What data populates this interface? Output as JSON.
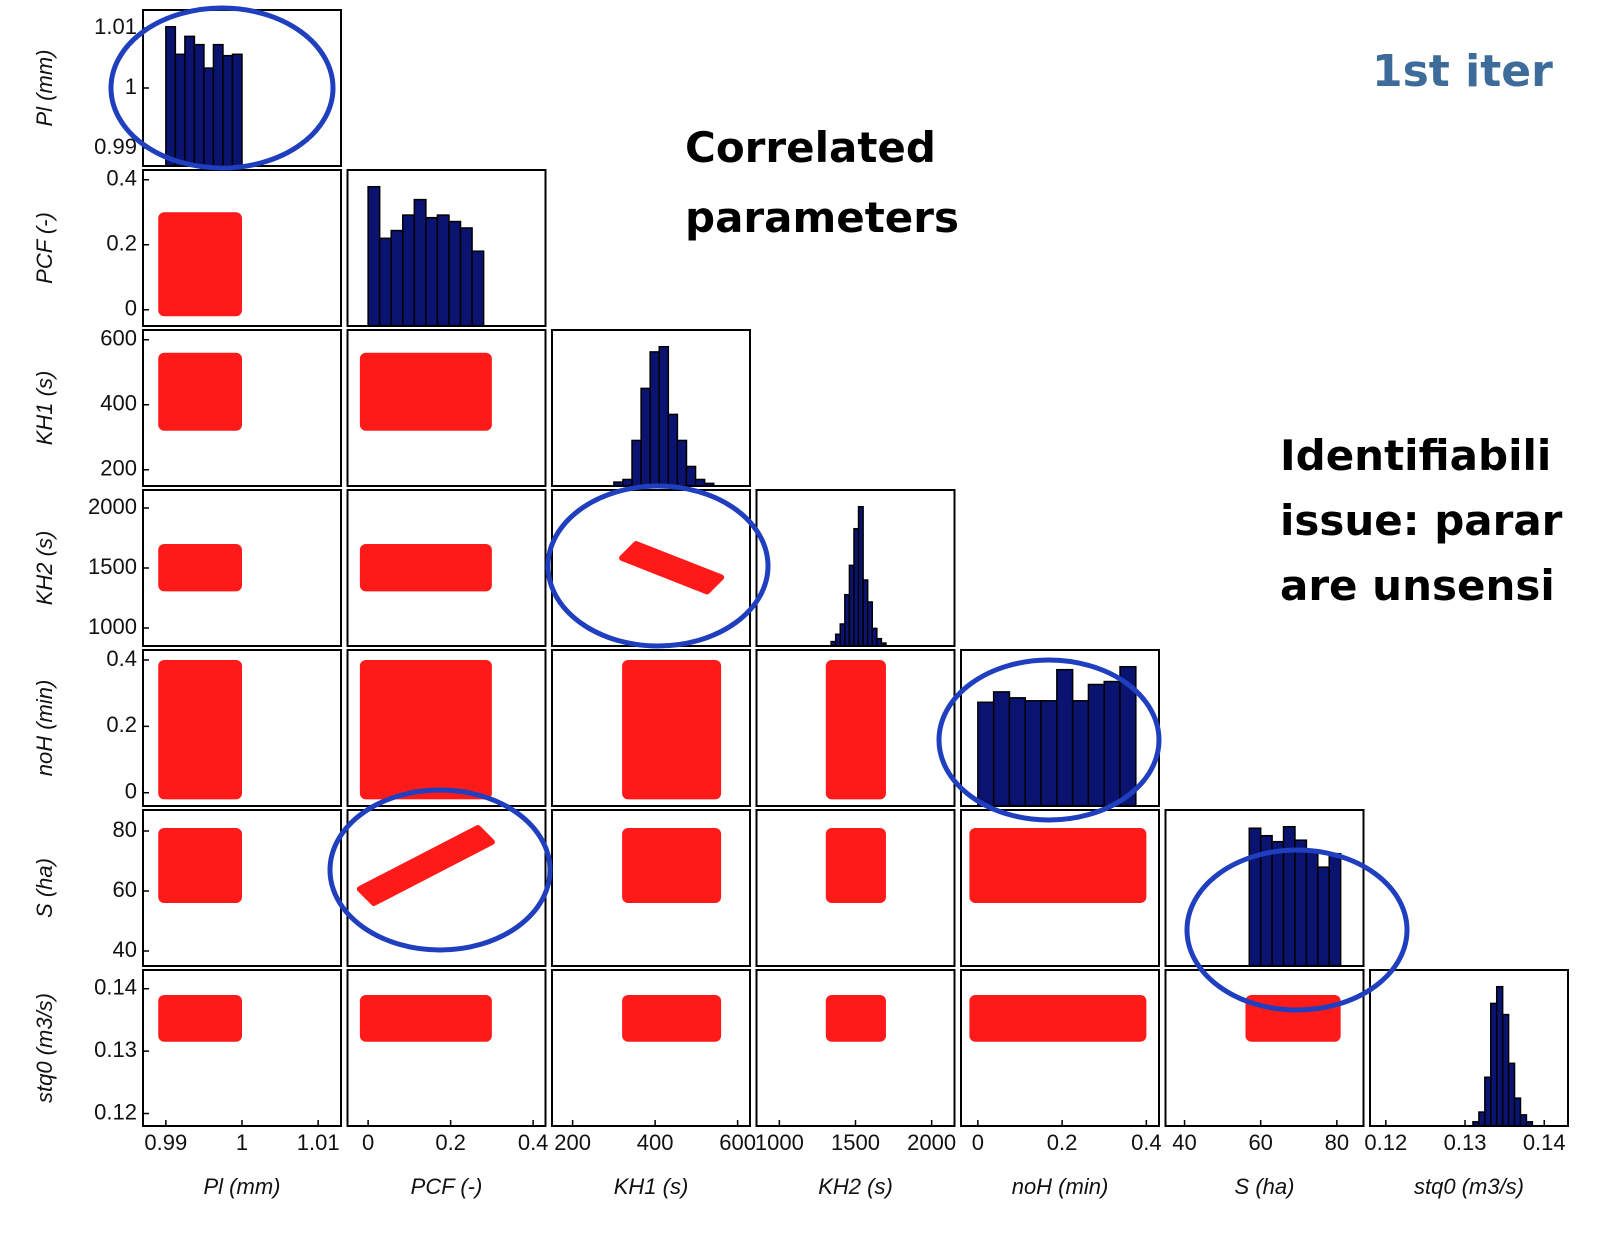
{
  "title": "1st iter",
  "annotations": [
    {
      "lines": [
        "Correlated",
        "parameters"
      ]
    },
    {
      "lines": [
        "Identifiabili",
        "issue: parar",
        "are unsensi"
      ]
    }
  ],
  "chart_data": {
    "type": "scatter_matrix",
    "variables": [
      {
        "label": "Pl (mm)",
        "lim": [
          0.987,
          1.013
        ],
        "ticks": [
          0.99,
          1,
          1.01
        ],
        "sample_range": [
          0.989,
          1.0
        ],
        "bins": [
          0.99,
          0.99125,
          0.9925,
          0.99375,
          0.995,
          0.99625,
          0.9975,
          0.99875,
          1.0
        ],
        "counts": [
          101,
          81,
          94,
          88,
          71,
          88,
          80,
          81
        ]
      },
      {
        "label": "PCF (-)",
        "lim": [
          -0.05,
          0.43
        ],
        "ticks": [
          0,
          0.2,
          0.4
        ],
        "sample_range": [
          -0.02,
          0.3
        ],
        "bins": [
          0,
          0.028,
          0.056,
          0.084,
          0.112,
          0.14,
          0.168,
          0.196,
          0.224,
          0.252,
          0.28
        ],
        "counts": [
          108,
          68,
          74,
          86,
          98,
          84,
          86,
          81,
          76,
          58
        ]
      },
      {
        "label": "KH1 (s)",
        "lim": [
          150,
          630
        ],
        "ticks": [
          200,
          400,
          600
        ],
        "sample_range": [
          320,
          560
        ],
        "bins": [
          300,
          322,
          344,
          366,
          388,
          410,
          432,
          454,
          476,
          498,
          520,
          542
        ],
        "counts": [
          3,
          5,
          35,
          75,
          103,
          107,
          55,
          35,
          15,
          5,
          2
        ]
      },
      {
        "label": "KH2 (s)",
        "lim": [
          850,
          2150
        ],
        "ticks": [
          1000,
          1500,
          2000
        ],
        "sample_range": [
          1305,
          1700
        ],
        "bins": [
          1340,
          1370,
          1400,
          1430,
          1460,
          1490,
          1520,
          1550,
          1580,
          1610,
          1640,
          1670,
          1700
        ],
        "counts": [
          3,
          8,
          15,
          35,
          55,
          80,
          95,
          45,
          30,
          12,
          5,
          2
        ]
      },
      {
        "label": "noH (min)",
        "lim": [
          -0.04,
          0.43
        ],
        "ticks": [
          0,
          0.2,
          0.4
        ],
        "sample_range": [
          -0.02,
          0.4
        ],
        "bins": [
          0,
          0.0375,
          0.075,
          0.1125,
          0.15,
          0.1875,
          0.225,
          0.2625,
          0.3,
          0.3375,
          0.375
        ],
        "counts": [
          70,
          77,
          73,
          71,
          71,
          92,
          71,
          82,
          84,
          94
        ]
      },
      {
        "label": "S (ha)",
        "lim": [
          35,
          87
        ],
        "ticks": [
          40,
          60,
          80
        ],
        "sample_range": [
          56,
          81
        ],
        "bins": [
          57,
          60,
          63,
          66,
          69,
          72,
          75,
          78,
          81
        ],
        "counts": [
          92,
          87,
          83,
          93,
          84,
          77,
          66,
          75
        ]
      },
      {
        "label": "stq0 (m3/s)",
        "lim": [
          0.118,
          0.143
        ],
        "ticks": [
          0.12,
          0.13,
          0.14
        ],
        "sample_range": [
          0.1315,
          0.139
        ],
        "bins": [
          0.131,
          0.13175,
          0.1325,
          0.13325,
          0.134,
          0.13475,
          0.1355,
          0.13625,
          0.137,
          0.13775,
          0.1385
        ],
        "counts": [
          3,
          10,
          35,
          88,
          100,
          80,
          45,
          20,
          8,
          3
        ]
      }
    ],
    "hist_color": "#0a1470",
    "cloud_color": "#ff1a1a",
    "clouds": [
      {
        "x": 0,
        "y": 1
      },
      {
        "x": 0,
        "y": 2
      },
      {
        "x": 1,
        "y": 2
      },
      {
        "x": 0,
        "y": 3
      },
      {
        "x": 1,
        "y": 3
      },
      {
        "x": 2,
        "y": 3,
        "trend": "down"
      },
      {
        "x": 0,
        "y": 4
      },
      {
        "x": 1,
        "y": 4
      },
      {
        "x": 2,
        "y": 4
      },
      {
        "x": 3,
        "y": 4
      },
      {
        "x": 0,
        "y": 5
      },
      {
        "x": 1,
        "y": 5,
        "trend": "up"
      },
      {
        "x": 2,
        "y": 5
      },
      {
        "x": 3,
        "y": 5
      },
      {
        "x": 4,
        "y": 5
      },
      {
        "x": 0,
        "y": 6
      },
      {
        "x": 1,
        "y": 6
      },
      {
        "x": 2,
        "y": 6
      },
      {
        "x": 3,
        "y": 6
      },
      {
        "x": 4,
        "y": 6
      },
      {
        "x": 5,
        "y": 6
      }
    ]
  }
}
